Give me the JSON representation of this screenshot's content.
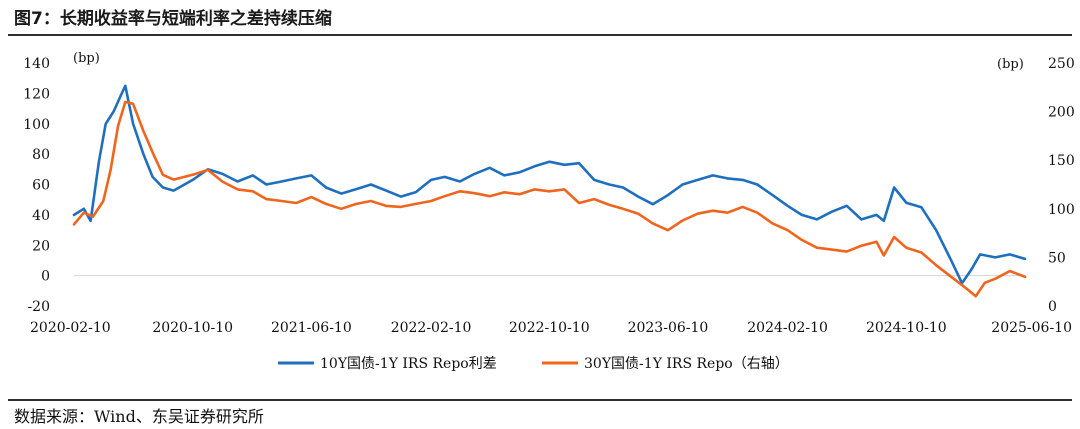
{
  "figure": {
    "title": "图7：长期收益率与短端利率之差持续压缩",
    "source": "数据来源：Wind、东吴证券研究所"
  },
  "chart_data": {
    "type": "line",
    "left_unit": "(bp)",
    "right_unit": "(bp)",
    "ylim_left": [
      -20,
      140
    ],
    "ylim_right": [
      0,
      250
    ],
    "yticks_left": [
      -20,
      0,
      20,
      40,
      60,
      80,
      100,
      120,
      140
    ],
    "yticks_right": [
      0,
      50,
      100,
      150,
      200,
      250
    ],
    "x_range": [
      "2020-02-10",
      "2025-06-10"
    ],
    "xticks": [
      "2020-02-10",
      "2020-10-10",
      "2021-06-10",
      "2022-02-10",
      "2022-10-10",
      "2023-06-10",
      "2024-02-10",
      "2024-10-10",
      "2025-06-10"
    ],
    "legend_position": "bottom",
    "colors": {
      "series1": "#1f6fc0",
      "series2": "#f0651e",
      "zero_line": "#d4d4d4"
    },
    "series": [
      {
        "name": "10Y国债-1Y IRS Repo利差",
        "axis": "left",
        "color": "#1f6fc0",
        "points": [
          [
            "2020-02-10",
            40
          ],
          [
            "2020-03-01",
            44
          ],
          [
            "2020-03-15",
            36
          ],
          [
            "2020-04-01",
            75
          ],
          [
            "2020-04-15",
            100
          ],
          [
            "2020-05-01",
            108
          ],
          [
            "2020-05-15",
            118
          ],
          [
            "2020-05-25",
            125
          ],
          [
            "2020-06-10",
            100
          ],
          [
            "2020-07-01",
            80
          ],
          [
            "2020-07-20",
            65
          ],
          [
            "2020-08-10",
            58
          ],
          [
            "2020-09-01",
            56
          ],
          [
            "2020-10-10",
            63
          ],
          [
            "2020-11-10",
            70
          ],
          [
            "2020-12-10",
            67
          ],
          [
            "2021-01-10",
            62
          ],
          [
            "2021-02-10",
            66
          ],
          [
            "2021-03-10",
            60
          ],
          [
            "2021-04-10",
            62
          ],
          [
            "2021-05-10",
            64
          ],
          [
            "2021-06-10",
            66
          ],
          [
            "2021-07-10",
            58
          ],
          [
            "2021-08-10",
            54
          ],
          [
            "2021-09-10",
            57
          ],
          [
            "2021-10-10",
            60
          ],
          [
            "2021-11-10",
            56
          ],
          [
            "2021-12-10",
            52
          ],
          [
            "2022-01-10",
            55
          ],
          [
            "2022-02-10",
            63
          ],
          [
            "2022-03-10",
            65
          ],
          [
            "2022-04-10",
            62
          ],
          [
            "2022-05-10",
            67
          ],
          [
            "2022-06-10",
            71
          ],
          [
            "2022-07-10",
            66
          ],
          [
            "2022-08-10",
            68
          ],
          [
            "2022-09-10",
            72
          ],
          [
            "2022-10-10",
            75
          ],
          [
            "2022-11-10",
            73
          ],
          [
            "2022-12-10",
            74
          ],
          [
            "2023-01-10",
            63
          ],
          [
            "2023-02-10",
            60
          ],
          [
            "2023-03-10",
            58
          ],
          [
            "2023-04-10",
            52
          ],
          [
            "2023-05-10",
            47
          ],
          [
            "2023-06-10",
            53
          ],
          [
            "2023-07-10",
            60
          ],
          [
            "2023-08-10",
            63
          ],
          [
            "2023-09-10",
            66
          ],
          [
            "2023-10-10",
            64
          ],
          [
            "2023-11-10",
            63
          ],
          [
            "2023-12-10",
            60
          ],
          [
            "2024-01-10",
            53
          ],
          [
            "2024-02-10",
            46
          ],
          [
            "2024-03-10",
            40
          ],
          [
            "2024-04-10",
            37
          ],
          [
            "2024-05-10",
            42
          ],
          [
            "2024-06-10",
            46
          ],
          [
            "2024-07-10",
            37
          ],
          [
            "2024-08-10",
            40
          ],
          [
            "2024-08-25",
            36
          ],
          [
            "2024-09-15",
            58
          ],
          [
            "2024-10-10",
            48
          ],
          [
            "2024-11-10",
            45
          ],
          [
            "2024-12-10",
            30
          ],
          [
            "2025-01-10",
            10
          ],
          [
            "2025-02-01",
            -5
          ],
          [
            "2025-02-20",
            4
          ],
          [
            "2025-03-10",
            14
          ],
          [
            "2025-04-10",
            12
          ],
          [
            "2025-05-10",
            14
          ],
          [
            "2025-06-10",
            11
          ]
        ]
      },
      {
        "name": "30Y国债-1Y IRS Repo（右轴）",
        "axis": "right",
        "color": "#f0651e",
        "points": [
          [
            "2020-02-10",
            84
          ],
          [
            "2020-03-01",
            96
          ],
          [
            "2020-03-20",
            92
          ],
          [
            "2020-04-10",
            108
          ],
          [
            "2020-04-25",
            140
          ],
          [
            "2020-05-10",
            185
          ],
          [
            "2020-05-25",
            210
          ],
          [
            "2020-06-10",
            208
          ],
          [
            "2020-07-01",
            180
          ],
          [
            "2020-07-20",
            158
          ],
          [
            "2020-08-10",
            135
          ],
          [
            "2020-09-01",
            130
          ],
          [
            "2020-10-10",
            135
          ],
          [
            "2020-11-10",
            140
          ],
          [
            "2020-12-10",
            128
          ],
          [
            "2021-01-10",
            120
          ],
          [
            "2021-02-10",
            118
          ],
          [
            "2021-03-10",
            110
          ],
          [
            "2021-04-10",
            108
          ],
          [
            "2021-05-10",
            106
          ],
          [
            "2021-06-10",
            112
          ],
          [
            "2021-07-10",
            105
          ],
          [
            "2021-08-10",
            100
          ],
          [
            "2021-09-10",
            105
          ],
          [
            "2021-10-10",
            108
          ],
          [
            "2021-11-10",
            103
          ],
          [
            "2021-12-10",
            102
          ],
          [
            "2022-01-10",
            105
          ],
          [
            "2022-02-10",
            108
          ],
          [
            "2022-03-10",
            113
          ],
          [
            "2022-04-10",
            118
          ],
          [
            "2022-05-10",
            116
          ],
          [
            "2022-06-10",
            113
          ],
          [
            "2022-07-10",
            117
          ],
          [
            "2022-08-10",
            115
          ],
          [
            "2022-09-10",
            120
          ],
          [
            "2022-10-10",
            118
          ],
          [
            "2022-11-10",
            120
          ],
          [
            "2022-12-10",
            106
          ],
          [
            "2023-01-10",
            110
          ],
          [
            "2023-02-10",
            104
          ],
          [
            "2023-03-10",
            100
          ],
          [
            "2023-04-10",
            95
          ],
          [
            "2023-05-10",
            85
          ],
          [
            "2023-06-10",
            78
          ],
          [
            "2023-07-10",
            88
          ],
          [
            "2023-08-10",
            95
          ],
          [
            "2023-09-10",
            98
          ],
          [
            "2023-10-10",
            96
          ],
          [
            "2023-11-10",
            102
          ],
          [
            "2023-12-10",
            96
          ],
          [
            "2024-01-10",
            85
          ],
          [
            "2024-02-10",
            78
          ],
          [
            "2024-03-10",
            68
          ],
          [
            "2024-04-10",
            60
          ],
          [
            "2024-05-10",
            58
          ],
          [
            "2024-06-10",
            56
          ],
          [
            "2024-07-10",
            62
          ],
          [
            "2024-08-10",
            66
          ],
          [
            "2024-08-25",
            52
          ],
          [
            "2024-09-15",
            71
          ],
          [
            "2024-10-10",
            60
          ],
          [
            "2024-11-10",
            55
          ],
          [
            "2024-12-10",
            42
          ],
          [
            "2025-01-10",
            30
          ],
          [
            "2025-02-10",
            18
          ],
          [
            "2025-03-01",
            10
          ],
          [
            "2025-03-20",
            24
          ],
          [
            "2025-04-10",
            28
          ],
          [
            "2025-05-10",
            36
          ],
          [
            "2025-06-10",
            30
          ]
        ]
      }
    ]
  }
}
